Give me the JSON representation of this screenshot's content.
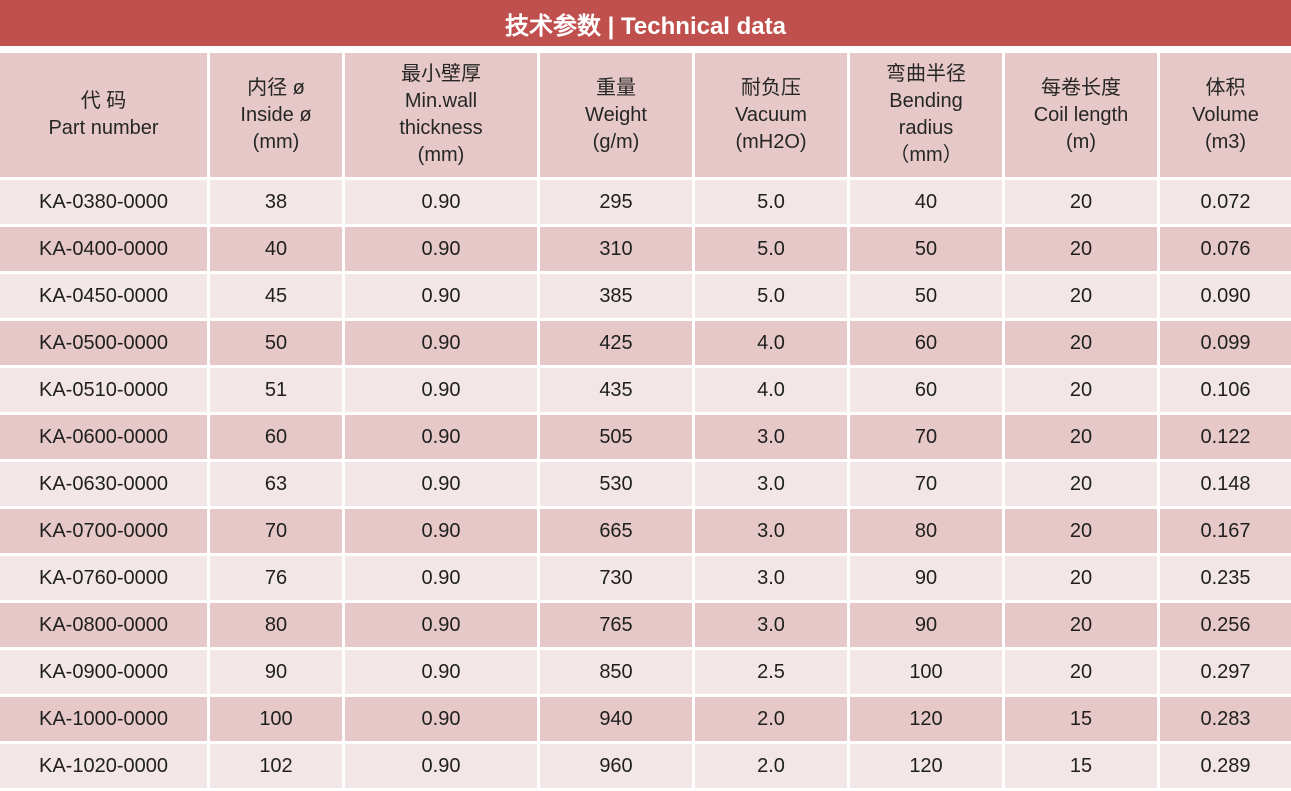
{
  "title": "技术参数 | Technical data",
  "table": {
    "headers": [
      [
        "代 码",
        "Part number"
      ],
      [
        "内径 ø",
        "Inside ø",
        "(mm)"
      ],
      [
        "最小壁厚",
        "Min.wall",
        "thickness",
        "(mm)"
      ],
      [
        "重量",
        "Weight",
        "(g/m)"
      ],
      [
        "耐负压",
        "Vacuum",
        "(mH2O)"
      ],
      [
        "弯曲半径",
        "Bending",
        "radius",
        "（mm）"
      ],
      [
        "每卷长度",
        "Coil length",
        "(m)"
      ],
      [
        "体积",
        "Volume",
        "(m3)"
      ]
    ],
    "rows": [
      [
        "KA-0380-0000",
        "38",
        "0.90",
        "295",
        "5.0",
        "40",
        "20",
        "0.072"
      ],
      [
        "KA-0400-0000",
        "40",
        "0.90",
        "310",
        "5.0",
        "50",
        "20",
        "0.076"
      ],
      [
        "KA-0450-0000",
        "45",
        "0.90",
        "385",
        "5.0",
        "50",
        "20",
        "0.090"
      ],
      [
        "KA-0500-0000",
        "50",
        "0.90",
        "425",
        "4.0",
        "60",
        "20",
        "0.099"
      ],
      [
        "KA-0510-0000",
        "51",
        "0.90",
        "435",
        "4.0",
        "60",
        "20",
        "0.106"
      ],
      [
        "KA-0600-0000",
        "60",
        "0.90",
        "505",
        "3.0",
        "70",
        "20",
        "0.122"
      ],
      [
        "KA-0630-0000",
        "63",
        "0.90",
        "530",
        "3.0",
        "70",
        "20",
        "0.148"
      ],
      [
        "KA-0700-0000",
        "70",
        "0.90",
        "665",
        "3.0",
        "80",
        "20",
        "0.167"
      ],
      [
        "KA-0760-0000",
        "76",
        "0.90",
        "730",
        "3.0",
        "90",
        "20",
        "0.235"
      ],
      [
        "KA-0800-0000",
        "80",
        "0.90",
        "765",
        "3.0",
        "90",
        "20",
        "0.256"
      ],
      [
        "KA-0900-0000",
        "90",
        "0.90",
        "850",
        "2.5",
        "100",
        "20",
        "0.297"
      ],
      [
        "KA-1000-0000",
        "100",
        "0.90",
        "940",
        "2.0",
        "120",
        "15",
        "0.283"
      ],
      [
        "KA-1020-0000",
        "102",
        "0.90",
        "960",
        "2.0",
        "120",
        "15",
        "0.289"
      ]
    ]
  },
  "colors": {
    "title_bar": "#c0504d",
    "header_bg": "#e6c8c8",
    "row_light": "#f2e6e6",
    "row_dark": "#e6c8c8"
  }
}
